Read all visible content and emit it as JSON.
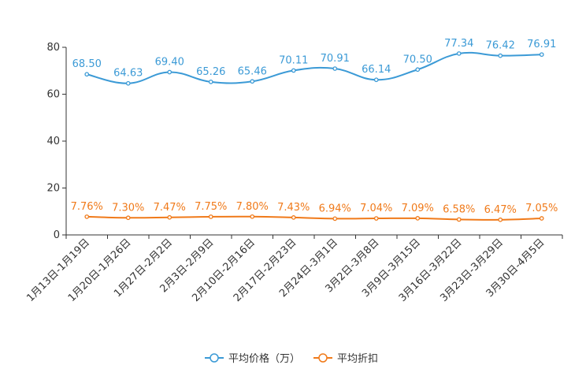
{
  "chart_data": {
    "type": "line",
    "title": "",
    "xlabel": "",
    "ylabel": "",
    "ylim": [
      0,
      80
    ],
    "yticks": [
      "0",
      "20",
      "40",
      "60",
      "80"
    ],
    "categories": [
      "1月13日-1月19日",
      "1月20日-1月26日",
      "1月27日-2月2日",
      "2月3日-2月9日",
      "2月10日-2月16日",
      "2月17日-2月23日",
      "2月24日-3月1日",
      "3月2日-3月8日",
      "3月9日-3月15日",
      "3月16日-3月22日",
      "3月23日-3月29日",
      "3月30日-4月5日"
    ],
    "series": [
      {
        "name": "平均价格（万）",
        "color": "#3b9ad6",
        "values": [
          68.5,
          64.63,
          69.4,
          65.26,
          65.46,
          70.11,
          70.91,
          66.14,
          70.5,
          77.34,
          76.42,
          76.91
        ],
        "labels": [
          "68.50",
          "64.63",
          "69.40",
          "65.26",
          "65.46",
          "70.11",
          "70.91",
          "66.14",
          "70.50",
          "77.34",
          "76.42",
          "76.91"
        ]
      },
      {
        "name": "平均折扣",
        "color": "#f07a1a",
        "values": [
          7.76,
          7.3,
          7.47,
          7.75,
          7.8,
          7.43,
          6.94,
          7.04,
          7.09,
          6.58,
          6.47,
          7.05
        ],
        "labels": [
          "7.76%",
          "7.30%",
          "7.47%",
          "7.75%",
          "7.80%",
          "7.43%",
          "6.94%",
          "7.04%",
          "7.09%",
          "6.58%",
          "6.47%",
          "7.05%"
        ]
      }
    ],
    "legend": "bottom-center"
  }
}
